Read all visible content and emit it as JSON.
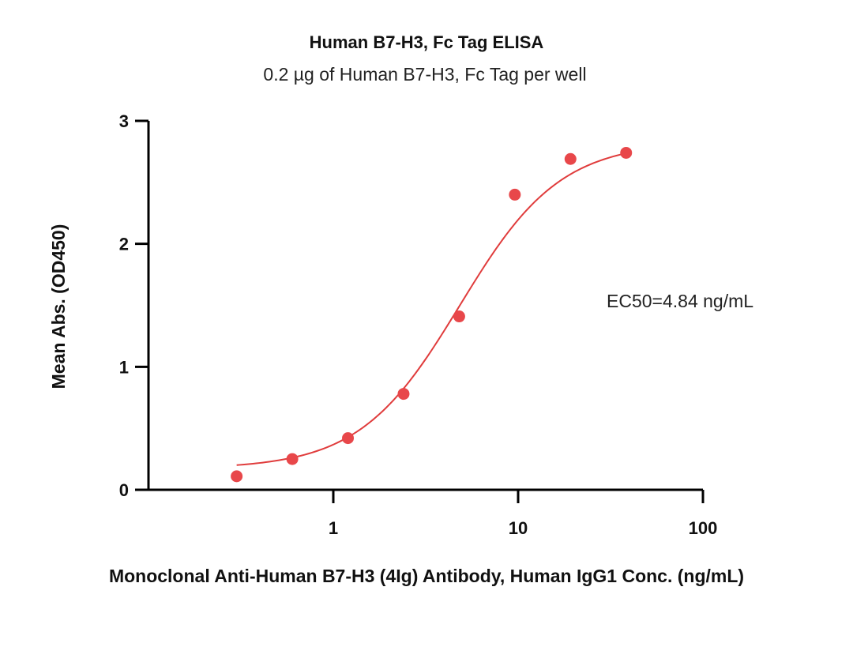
{
  "chart_data": {
    "type": "scatter",
    "title": "Human B7-H3, Fc Tag ELISA",
    "subtitle": "0.2 µg of Human B7-H3, Fc Tag per well",
    "xlabel": "Monoclonal Anti-Human B7-H3 (4Ig) Antibody, Human IgG1 Conc. (ng/mL)",
    "ylabel": "Mean Abs. (OD450)",
    "xscale": "log",
    "xlim": [
      0.1,
      100
    ],
    "ylim": [
      0,
      3
    ],
    "x_ticks": [
      {
        "value": 1,
        "label": "1"
      },
      {
        "value": 10,
        "label": "10"
      },
      {
        "value": 100,
        "label": "100"
      }
    ],
    "y_ticks": [
      {
        "value": 0,
        "label": "0"
      },
      {
        "value": 1,
        "label": "1"
      },
      {
        "value": 2,
        "label": "2"
      },
      {
        "value": 3,
        "label": "3"
      }
    ],
    "series": [
      {
        "color": "#e8474a",
        "x": [
          0.3,
          0.6,
          1.2,
          2.4,
          4.8,
          9.6,
          19.2,
          38.4
        ],
        "y": [
          0.11,
          0.25,
          0.42,
          0.78,
          1.41,
          2.4,
          2.69,
          2.74
        ]
      }
    ],
    "fit": {
      "type": "4PL",
      "color": "#e03c3c",
      "bottom": 0.17,
      "top": 2.83,
      "ec50": 4.84,
      "hill": 1.6,
      "x_range": [
        0.3,
        38.4
      ]
    },
    "annotation": "EC50=4.84 ng/mL",
    "grid": false,
    "legend": "none"
  }
}
